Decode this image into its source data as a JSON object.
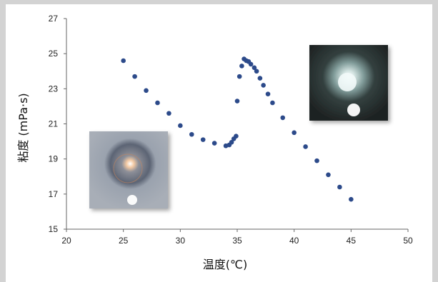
{
  "chart_data": {
    "type": "scatter",
    "xlabel": "温度(℃)",
    "ylabel": "粘度 (mPa·s)",
    "xlim": [
      20,
      50
    ],
    "ylim": [
      15,
      27
    ],
    "xticks": [
      20,
      25,
      30,
      35,
      40,
      45,
      50
    ],
    "yticks": [
      15,
      17,
      19,
      21,
      23,
      25,
      27
    ],
    "grid": false,
    "marker_color": "#2c4a8a",
    "points": [
      {
        "x": 25.0,
        "y": 24.6
      },
      {
        "x": 26.0,
        "y": 23.7
      },
      {
        "x": 27.0,
        "y": 22.9
      },
      {
        "x": 28.0,
        "y": 22.2
      },
      {
        "x": 29.0,
        "y": 21.6
      },
      {
        "x": 30.0,
        "y": 20.9
      },
      {
        "x": 31.0,
        "y": 20.4
      },
      {
        "x": 32.0,
        "y": 20.1
      },
      {
        "x": 33.0,
        "y": 19.9
      },
      {
        "x": 34.0,
        "y": 19.75
      },
      {
        "x": 34.3,
        "y": 19.8
      },
      {
        "x": 34.5,
        "y": 19.95
      },
      {
        "x": 34.7,
        "y": 20.15
      },
      {
        "x": 34.9,
        "y": 20.3
      },
      {
        "x": 35.0,
        "y": 22.3
      },
      {
        "x": 35.2,
        "y": 23.7
      },
      {
        "x": 35.4,
        "y": 24.3
      },
      {
        "x": 35.6,
        "y": 24.7
      },
      {
        "x": 35.8,
        "y": 24.6
      },
      {
        "x": 36.0,
        "y": 24.55
      },
      {
        "x": 36.2,
        "y": 24.4
      },
      {
        "x": 36.5,
        "y": 24.2
      },
      {
        "x": 36.7,
        "y": 24.0
      },
      {
        "x": 37.0,
        "y": 23.6
      },
      {
        "x": 37.3,
        "y": 23.2
      },
      {
        "x": 37.7,
        "y": 22.7
      },
      {
        "x": 38.1,
        "y": 22.2
      },
      {
        "x": 39.0,
        "y": 21.35
      },
      {
        "x": 40.0,
        "y": 20.5
      },
      {
        "x": 41.0,
        "y": 19.7
      },
      {
        "x": 42.0,
        "y": 18.9
      },
      {
        "x": 43.0,
        "y": 18.1
      },
      {
        "x": 44.0,
        "y": 17.4
      },
      {
        "x": 45.0,
        "y": 16.7
      }
    ]
  }
}
